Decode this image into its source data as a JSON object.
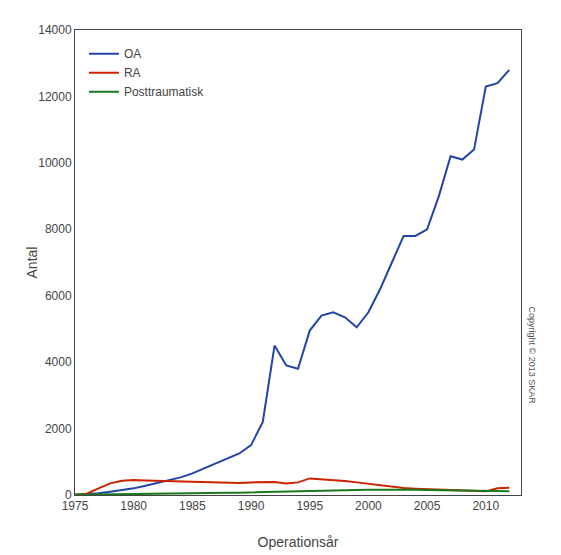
{
  "chart_data": {
    "type": "line",
    "xlabel": "Operationsår",
    "ylabel": "Antal",
    "annotations": [
      "Copyright © 2013 SKAR"
    ],
    "x": [
      1975,
      1976,
      1977,
      1978,
      1979,
      1980,
      1981,
      1982,
      1983,
      1984,
      1985,
      1986,
      1987,
      1988,
      1989,
      1990,
      1991,
      1992,
      1993,
      1994,
      1995,
      1996,
      1997,
      1998,
      1999,
      2000,
      2001,
      2002,
      2003,
      2004,
      2005,
      2006,
      2007,
      2008,
      2009,
      2010,
      2011,
      2012
    ],
    "series": [
      {
        "name": "OA",
        "color": "#2244AA",
        "values": [
          10,
          20,
          50,
          100,
          150,
          200,
          280,
          360,
          440,
          530,
          650,
          800,
          950,
          1100,
          1250,
          1500,
          2200,
          4500,
          3900,
          3800,
          4950,
          5400,
          5500,
          5350,
          5050,
          5500,
          6200,
          7000,
          7800,
          7800,
          8000,
          9000,
          10200,
          10100,
          10400,
          12300,
          12400,
          12800
        ]
      },
      {
        "name": "RA",
        "color": "#CC2200",
        "values": [
          10,
          40,
          200,
          350,
          430,
          450,
          440,
          430,
          410,
          400,
          390,
          380,
          380,
          370,
          360,
          380,
          380,
          390,
          350,
          380,
          500,
          480,
          460,
          420,
          380,
          340,
          280,
          240,
          210,
          190,
          180,
          160,
          150,
          130,
          120,
          110,
          200,
          220
        ]
      },
      {
        "name": "Posttraumatisk",
        "color": "#1A7A1A",
        "values": [
          5,
          8,
          10,
          15,
          20,
          25,
          30,
          35,
          40,
          45,
          50,
          55,
          60,
          65,
          70,
          80,
          90,
          100,
          95,
          100,
          110,
          120,
          130,
          140,
          150,
          155,
          160,
          165,
          160,
          155,
          150,
          145,
          140,
          130,
          125,
          120,
          115,
          110
        ]
      }
    ],
    "xlim": [
      1975,
      2013
    ],
    "ylim": [
      0,
      14000
    ],
    "xticks": [
      1975,
      1980,
      1985,
      1990,
      1995,
      2000,
      2005,
      2010
    ],
    "yticks": [
      0,
      2000,
      4000,
      6000,
      8000,
      10000,
      12000,
      14000
    ],
    "grid": false,
    "legend": "upper left"
  }
}
